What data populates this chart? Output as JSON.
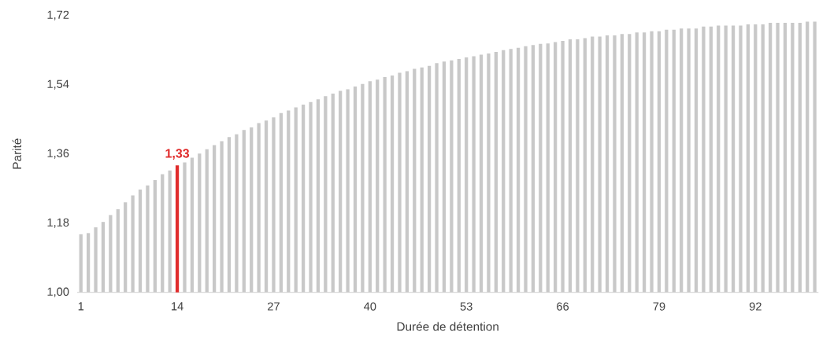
{
  "chart_data": {
    "type": "bar",
    "xlabel": "Durée  de détention",
    "ylabel": "Parité",
    "categories": [
      "1",
      null,
      null,
      null,
      null,
      null,
      null,
      null,
      null,
      null,
      null,
      null,
      null,
      "14",
      null,
      null,
      null,
      null,
      null,
      null,
      null,
      null,
      null,
      null,
      null,
      null,
      "27",
      null,
      null,
      null,
      null,
      null,
      null,
      null,
      null,
      null,
      null,
      null,
      null,
      "40",
      null,
      null,
      null,
      null,
      null,
      null,
      null,
      null,
      null,
      null,
      null,
      null,
      "53",
      null,
      null,
      null,
      null,
      null,
      null,
      null,
      null,
      null,
      null,
      null,
      null,
      "66",
      null,
      null,
      null,
      null,
      null,
      null,
      null,
      null,
      null,
      null,
      null,
      null,
      "79",
      null,
      null,
      null,
      null,
      null,
      null,
      null,
      null,
      null,
      null,
      null,
      null,
      "92",
      null,
      null,
      null,
      null,
      null,
      null,
      null,
      null
    ],
    "values": [
      1.151,
      1.154,
      1.169,
      1.183,
      1.201,
      1.216,
      1.234,
      1.252,
      1.267,
      1.278,
      1.292,
      1.307,
      1.317,
      1.33,
      1.338,
      1.35,
      1.361,
      1.372,
      1.383,
      1.393,
      1.404,
      1.411,
      1.422,
      1.429,
      1.44,
      1.447,
      1.455,
      1.466,
      1.473,
      1.481,
      1.488,
      1.495,
      1.502,
      1.51,
      1.517,
      1.524,
      1.528,
      1.535,
      1.542,
      1.549,
      1.553,
      1.56,
      1.564,
      1.571,
      1.575,
      1.581,
      1.585,
      1.589,
      1.596,
      1.6,
      1.603,
      1.607,
      1.611,
      1.614,
      1.618,
      1.621,
      1.625,
      1.63,
      1.633,
      1.636,
      1.64,
      1.643,
      1.646,
      1.647,
      1.651,
      1.654,
      1.658,
      1.658,
      1.661,
      1.665,
      1.665,
      1.668,
      1.668,
      1.672,
      1.672,
      1.676,
      1.676,
      1.679,
      1.679,
      1.683,
      1.683,
      1.686,
      1.686,
      1.686,
      1.691,
      1.691,
      1.694,
      1.694,
      1.694,
      1.694,
      1.697,
      1.697,
      1.697,
      1.701,
      1.701,
      1.701,
      1.701,
      1.701,
      1.704,
      1.704
    ],
    "colors": [
      "#c8c8c8",
      "#c8c8c8",
      "#c8c8c8",
      "#c8c8c8",
      "#c8c8c8",
      "#c8c8c8",
      "#c8c8c8",
      "#c8c8c8",
      "#c8c8c8",
      "#c8c8c8",
      "#c8c8c8",
      "#c8c8c8",
      "#c8c8c8",
      "#e02b2b",
      "#c8c8c8",
      "#c8c8c8",
      "#c8c8c8",
      "#c8c8c8",
      "#c8c8c8",
      "#c8c8c8",
      "#c8c8c8",
      "#c8c8c8",
      "#c8c8c8",
      "#c8c8c8",
      "#c8c8c8",
      "#c8c8c8",
      "#c8c8c8",
      "#c8c8c8",
      "#c8c8c8",
      "#c8c8c8",
      "#c8c8c8",
      "#c8c8c8",
      "#c8c8c8",
      "#c8c8c8",
      "#c8c8c8",
      "#c8c8c8",
      "#c8c8c8",
      "#c8c8c8",
      "#c8c8c8",
      "#c8c8c8",
      "#c8c8c8",
      "#c8c8c8",
      "#c8c8c8",
      "#c8c8c8",
      "#c8c8c8",
      "#c8c8c8",
      "#c8c8c8",
      "#c8c8c8",
      "#c8c8c8",
      "#c8c8c8",
      "#c8c8c8",
      "#c8c8c8",
      "#c8c8c8",
      "#c8c8c8",
      "#c8c8c8",
      "#c8c8c8",
      "#c8c8c8",
      "#c8c8c8",
      "#c8c8c8",
      "#c8c8c8",
      "#c8c8c8",
      "#c8c8c8",
      "#c8c8c8",
      "#c8c8c8",
      "#c8c8c8",
      "#c8c8c8",
      "#c8c8c8",
      "#c8c8c8",
      "#c8c8c8",
      "#c8c8c8",
      "#c8c8c8",
      "#c8c8c8",
      "#c8c8c8",
      "#c8c8c8",
      "#c8c8c8",
      "#c8c8c8",
      "#c8c8c8",
      "#c8c8c8",
      "#c8c8c8",
      "#c8c8c8",
      "#c8c8c8",
      "#c8c8c8",
      "#c8c8c8",
      "#c8c8c8",
      "#c8c8c8",
      "#c8c8c8",
      "#c8c8c8",
      "#c8c8c8",
      "#c8c8c8",
      "#c8c8c8",
      "#c8c8c8",
      "#c8c8c8",
      "#c8c8c8",
      "#c8c8c8",
      "#c8c8c8",
      "#c8c8c8",
      "#c8c8c8",
      "#c8c8c8",
      "#c8c8c8",
      "#c8c8c8"
    ],
    "value_labels": [
      null,
      null,
      null,
      null,
      null,
      null,
      null,
      null,
      null,
      null,
      null,
      null,
      null,
      "1,33",
      null,
      null,
      null,
      null,
      null,
      null,
      null,
      null,
      null,
      null,
      null,
      null,
      null,
      null,
      null,
      null,
      null,
      null,
      null,
      null,
      null,
      null,
      null,
      null,
      null,
      null,
      null,
      null,
      null,
      null,
      null,
      null,
      null,
      null,
      null,
      null,
      null,
      null,
      null,
      null,
      null,
      null,
      null,
      null,
      null,
      null,
      null,
      null,
      null,
      null,
      null,
      null,
      null,
      null,
      null,
      null,
      null,
      null,
      null,
      null,
      null,
      null,
      null,
      null,
      null,
      null,
      null,
      null,
      null,
      null,
      null,
      null,
      null,
      null,
      null,
      null,
      null,
      null,
      null,
      null,
      null,
      null,
      null,
      null,
      null,
      null
    ],
    "ylim": [
      1.0,
      1.72
    ],
    "yticks": [
      {
        "value": 1.0,
        "label": "1,00"
      },
      {
        "value": 1.18,
        "label": "1,18"
      },
      {
        "value": 1.36,
        "label": "1,36"
      },
      {
        "value": 1.54,
        "label": "1,54"
      },
      {
        "value": 1.72,
        "label": "1,72"
      }
    ]
  }
}
